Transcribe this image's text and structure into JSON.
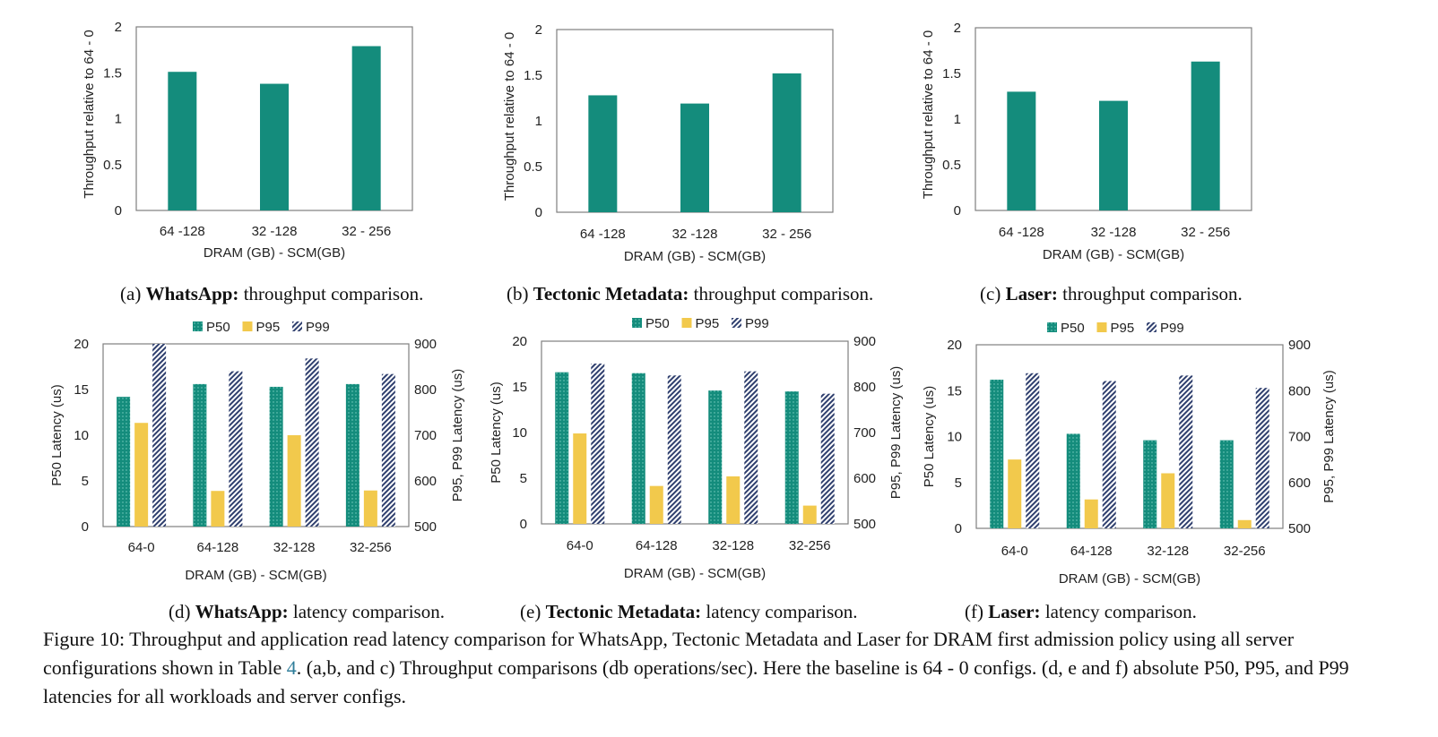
{
  "colors": {
    "p50": "#148c7c",
    "p95": "#f2c94c",
    "p99": "#2f3f6e",
    "frame": "#7f7f7f"
  },
  "throughput_ylabel": "Throughput relative to 64 - 0",
  "p50_ylabel": "P50 Latency (us)",
  "p9x_ylabel": "P95, P99 Latency (us)",
  "xlabel": "DRAM (GB) - SCM(GB)",
  "legend": {
    "p50": "P50",
    "p95": "P95",
    "p99": "P99"
  },
  "captions": {
    "a": {
      "tag": "(a) ",
      "bold": "WhatsApp:",
      "rest": " throughput comparison."
    },
    "b": {
      "tag": "(b) ",
      "bold": "Tectonic Metadata:",
      "rest": " throughput comparison."
    },
    "c": {
      "tag": "(c) ",
      "bold": "Laser:",
      "rest": " throughput comparison."
    },
    "d": {
      "tag": "(d) ",
      "bold": "WhatsApp:",
      "rest": " latency comparison."
    },
    "e": {
      "tag": "(e) ",
      "bold": "Tectonic Metadata:",
      "rest": " latency comparison."
    },
    "f": {
      "tag": "(f) ",
      "bold": "Laser:",
      "rest": " latency comparison."
    }
  },
  "figure_caption": {
    "part1": "Figure 10: Throughput and application read latency comparison for WhatsApp, Tectonic Metadata and Laser for DRAM first admission policy using all server configurations shown in Table ",
    "table_ref": "4",
    "part2": ". (a,b, and c) Throughput comparisons (db operations/sec). Here the baseline is 64 - 0 configs. (d, e and f) absolute P50, P95, and P99 latencies for all workloads and server configs."
  },
  "chart_data": [
    {
      "id": "a",
      "type": "bar",
      "title": "WhatsApp",
      "categories": [
        "64 -128",
        "32 -128",
        "32 - 256"
      ],
      "values": [
        1.51,
        1.38,
        1.79
      ],
      "ylim": [
        0,
        2
      ],
      "yticks": [
        0,
        0.5,
        1,
        1.5,
        2
      ],
      "ylabel": "Throughput relative to 64 - 0",
      "xlabel": "DRAM (GB) - SCM(GB)"
    },
    {
      "id": "b",
      "type": "bar",
      "title": "Tectonic Metadata",
      "categories": [
        "64 -128",
        "32 -128",
        "32 - 256"
      ],
      "values": [
        1.28,
        1.19,
        1.52
      ],
      "ylim": [
        0,
        2
      ],
      "yticks": [
        0,
        0.5,
        1,
        1.5,
        2
      ],
      "ylabel": "Throughput relative to 64 - 0",
      "xlabel": "DRAM (GB) - SCM(GB)"
    },
    {
      "id": "c",
      "type": "bar",
      "title": "Laser",
      "categories": [
        "64 -128",
        "32 -128",
        "32 - 256"
      ],
      "values": [
        1.3,
        1.2,
        1.63
      ],
      "ylim": [
        0,
        2
      ],
      "yticks": [
        0,
        0.5,
        1,
        1.5,
        2
      ],
      "ylabel": "Throughput relative to 64 - 0",
      "xlabel": "DRAM (GB) - SCM(GB)"
    },
    {
      "id": "d",
      "type": "bar",
      "title": "WhatsApp",
      "categories": [
        "64-0",
        "64-128",
        "32-128",
        "32-256"
      ],
      "series": [
        {
          "name": "P50",
          "axis": "left",
          "values": [
            14.2,
            15.6,
            15.3,
            15.6
          ]
        },
        {
          "name": "P95",
          "axis": "right",
          "values": [
            727,
            578,
            700,
            579
          ]
        },
        {
          "name": "P99",
          "axis": "right",
          "values": [
            900,
            840,
            868,
            834
          ]
        }
      ],
      "ylim_left": [
        0,
        20
      ],
      "yticks_left": [
        0,
        5,
        10,
        15,
        20
      ],
      "ylim_right": [
        500,
        900
      ],
      "yticks_right": [
        500,
        600,
        700,
        800,
        900
      ],
      "ylabel_left": "P50 Latency (us)",
      "ylabel_right": "P95, P99 Latency (us)",
      "xlabel": "DRAM (GB) - SCM(GB)",
      "legend_position": "top"
    },
    {
      "id": "e",
      "type": "bar",
      "title": "Tectonic Metadata",
      "categories": [
        "64-0",
        "64-128",
        "32-128",
        "32-256"
      ],
      "series": [
        {
          "name": "P50",
          "axis": "left",
          "values": [
            16.6,
            16.5,
            14.6,
            14.5
          ]
        },
        {
          "name": "P95",
          "axis": "right",
          "values": [
            698,
            583,
            604,
            540
          ]
        },
        {
          "name": "P99",
          "axis": "right",
          "values": [
            851,
            825,
            834,
            785
          ]
        }
      ],
      "ylim_left": [
        0,
        20
      ],
      "yticks_left": [
        0,
        5,
        10,
        15,
        20
      ],
      "ylim_right": [
        500,
        900
      ],
      "yticks_right": [
        500,
        600,
        700,
        800,
        900
      ],
      "ylabel_left": "P50 Latency (us)",
      "ylabel_right": "P95, P99 Latency (us)",
      "xlabel": "DRAM (GB) - SCM(GB)",
      "legend_position": "top"
    },
    {
      "id": "f",
      "type": "bar",
      "title": "Laser",
      "categories": [
        "64-0",
        "64-128",
        "32-128",
        "32-256"
      ],
      "series": [
        {
          "name": "P50",
          "axis": "left",
          "values": [
            16.2,
            10.3,
            9.6,
            9.6
          ]
        },
        {
          "name": "P95",
          "axis": "right",
          "values": [
            650,
            563,
            620,
            518
          ]
        },
        {
          "name": "P99",
          "axis": "right",
          "values": [
            838,
            821,
            833,
            806
          ]
        }
      ],
      "ylim_left": [
        0,
        20
      ],
      "yticks_left": [
        0,
        5,
        10,
        15,
        20
      ],
      "ylim_right": [
        500,
        900
      ],
      "yticks_right": [
        500,
        600,
        700,
        800,
        900
      ],
      "ylabel_left": "P50 Latency (us)",
      "ylabel_right": "P95, P99 Latency (us)",
      "xlabel": "DRAM (GB) - SCM(GB)",
      "legend_position": "top"
    }
  ]
}
